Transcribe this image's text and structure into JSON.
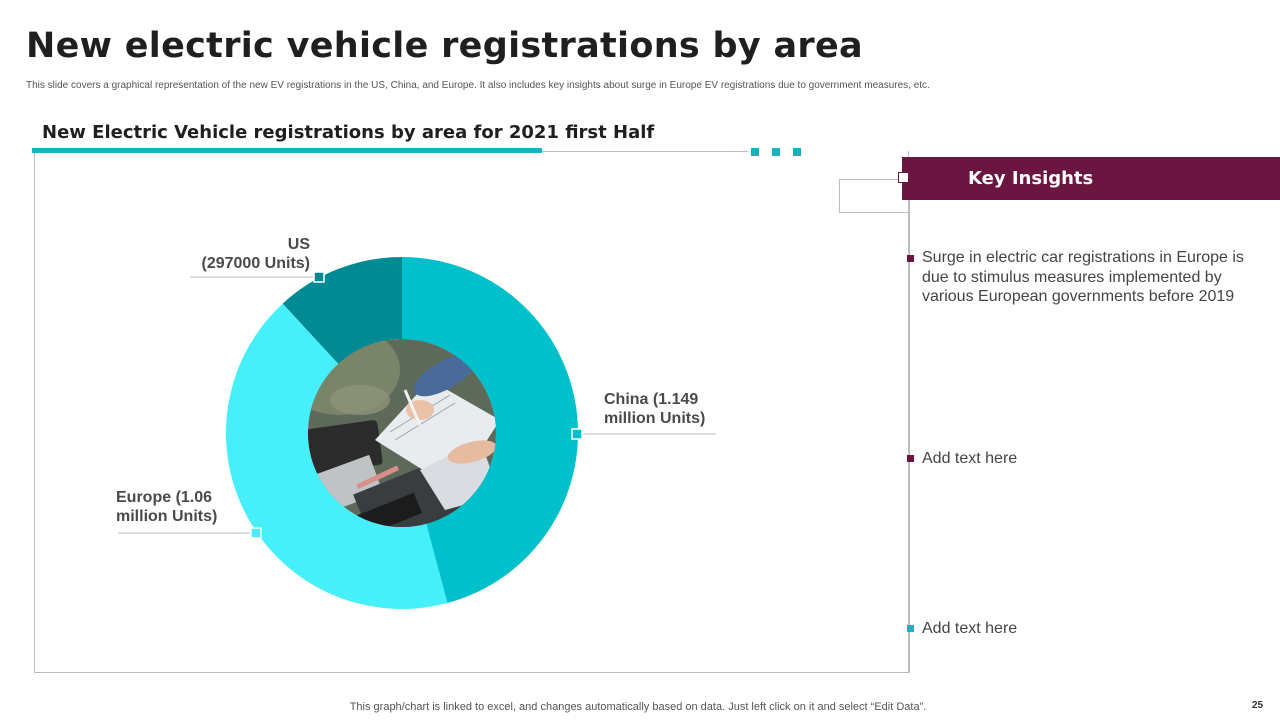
{
  "slide": {
    "title": "New electric vehicle registrations by area",
    "subtitle": "This slide covers a graphical representation of the new EV registrations in the US, China, and Europe. It also includes key insights about surge in Europe EV registrations due to government measures, etc.",
    "footer": "This graph/chart is linked to excel, and changes automatically based on data. Just left click on it and select “Edit Data”.",
    "page_number": "25"
  },
  "panel": {
    "title": "New Electric Vehicle registrations by area for 2021 first Half"
  },
  "insights": {
    "header": "Key Insights",
    "items": [
      {
        "text": "Surge in electric car registrations in Europe is due to stimulus measures implemented by various European governments before 2019",
        "color": "#6b1640"
      },
      {
        "text": "Add text here",
        "color": "#6b1640"
      },
      {
        "text": "Add text here",
        "color": "#17b3c1"
      }
    ]
  },
  "chart_data": {
    "type": "pie",
    "variant": "donut",
    "title": "New Electric Vehicle registrations by area for 2021 first Half",
    "unit": "Units",
    "slices": [
      {
        "name": "China",
        "value": 1149000,
        "label_line1": "China  (1.149",
        "label_line2": "million Units)",
        "color": "#00c0cc"
      },
      {
        "name": "Europe",
        "value": 1060000,
        "label_line1": "Europe  (1.06",
        "label_line2": "million Units)",
        "color": "#46f0fb"
      },
      {
        "name": "US",
        "value": 297000,
        "label_line1": "US",
        "label_line2": "(297000 Units)",
        "color": "#008a94"
      }
    ],
    "center_image": "photo-hands-writing-notes-laptop"
  },
  "colors": {
    "accent": "#17b3c1",
    "brand": "#6b1640"
  }
}
